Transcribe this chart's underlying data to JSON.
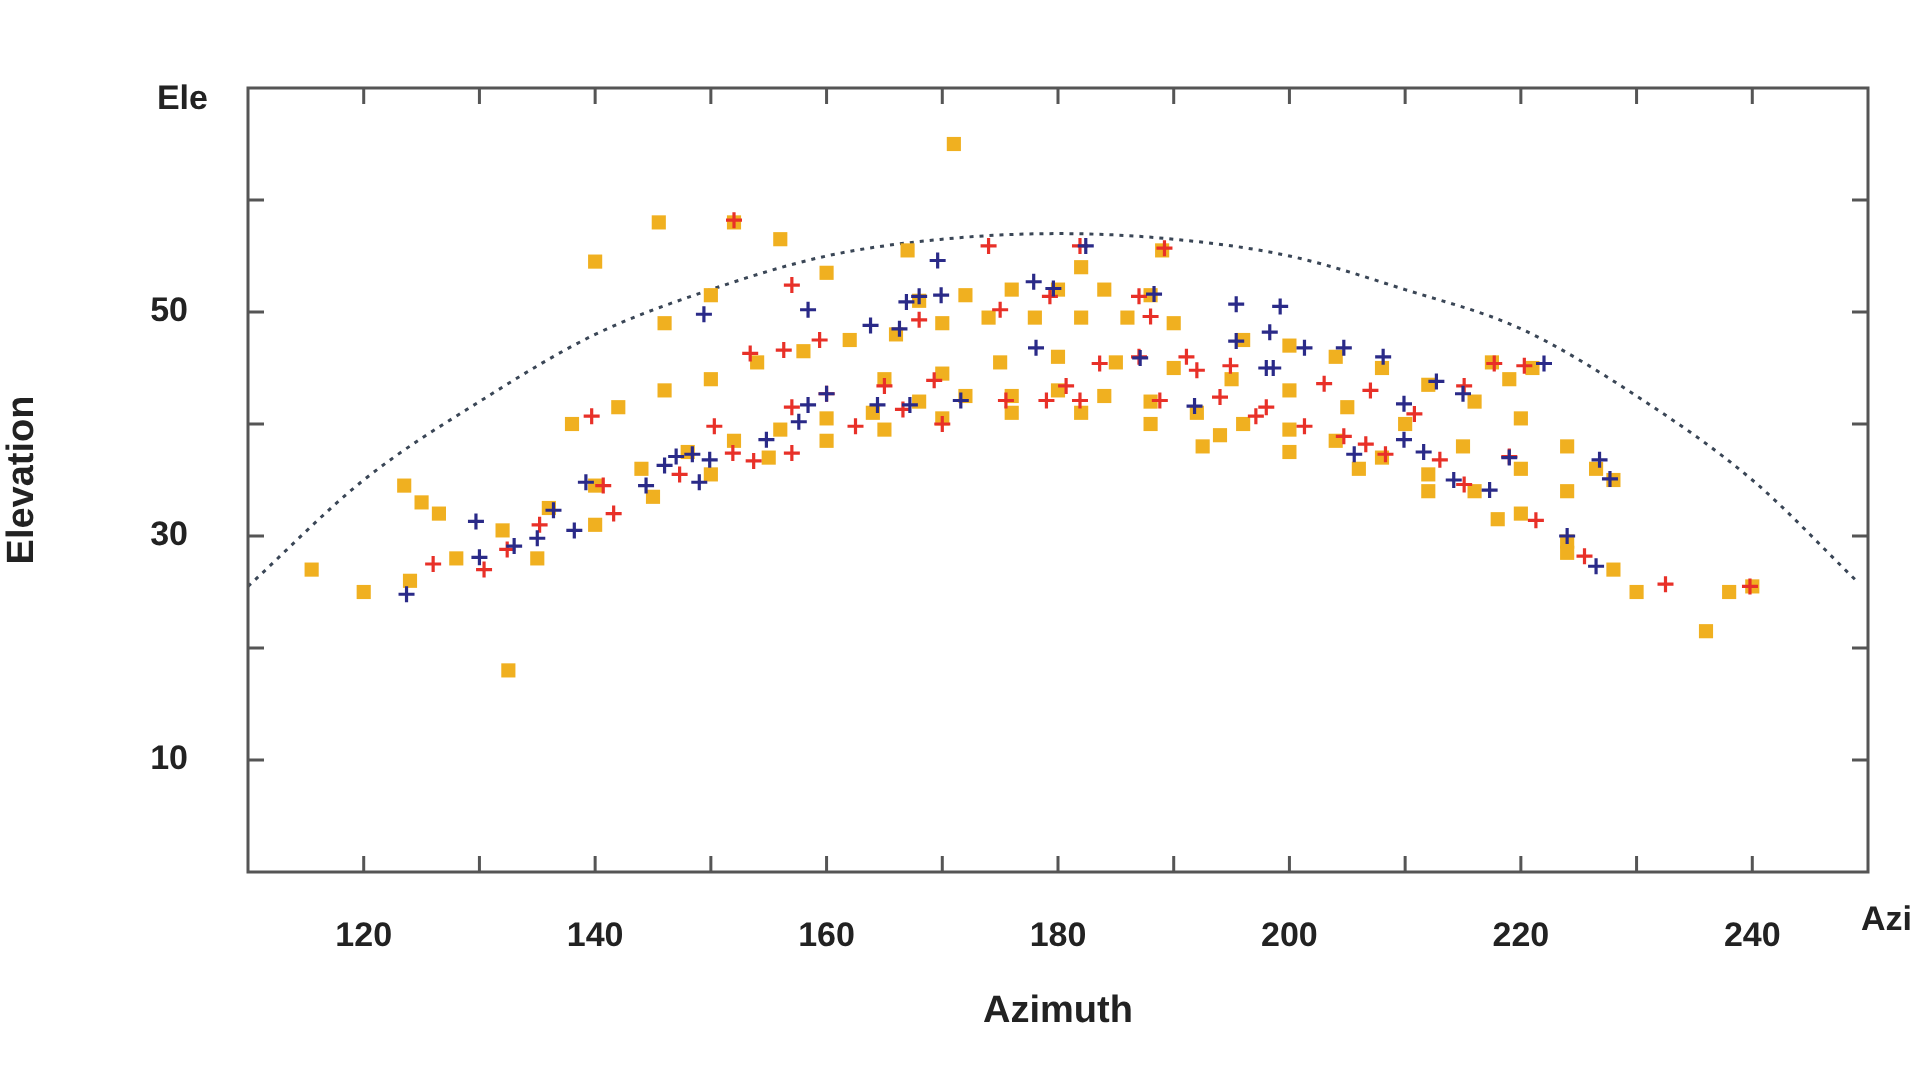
{
  "chart_data": {
    "type": "scatter",
    "xlabel": "Azimuth",
    "ylabel": "Elevation",
    "annotations": [
      "Ele",
      "Azi"
    ],
    "xlim": [
      110,
      250
    ],
    "xticks": [
      120,
      {
        "value": 130,
        "label": null
      },
      140,
      {
        "value": 150,
        "label": null
      },
      160,
      {
        "value": 170,
        "label": null
      },
      180,
      {
        "value": 190,
        "label": null
      },
      200,
      {
        "value": 210,
        "label": null
      },
      220,
      {
        "value": 230,
        "label": null
      },
      240
    ],
    "ylim": [
      0,
      70
    ],
    "yticks": [
      10,
      {
        "value": 20,
        "label": null
      },
      30,
      {
        "value": 40,
        "label": null
      },
      50,
      {
        "value": 60,
        "label": null
      }
    ],
    "grid": false,
    "legend": false,
    "series": [
      {
        "type": "scatter",
        "color": "#f0b020",
        "marker": "square",
        "x": [
          124,
          128,
          132,
          136,
          140,
          144,
          148,
          152,
          156,
          160,
          164,
          168,
          172,
          176,
          180,
          184,
          188,
          192,
          196,
          200,
          204,
          208,
          212,
          216,
          220,
          224,
          228,
          135,
          140,
          145,
          150,
          155,
          160,
          165,
          170,
          176,
          182,
          188,
          194,
          200,
          206,
          212,
          218,
          224,
          230,
          236,
          165,
          170,
          175,
          180,
          185,
          190,
          195,
          200,
          205,
          210,
          215,
          220,
          224,
          138,
          142,
          146,
          150,
          154,
          158,
          162,
          166,
          170,
          174,
          178,
          182,
          186,
          190,
          196,
          200,
          204,
          208,
          212,
          216,
          220,
          224,
          168,
          172,
          176,
          180,
          184,
          188,
          115.5,
          120,
          132.5,
          171,
          140,
          145.5,
          152,
          156,
          123.5,
          125,
          126.5,
          146,
          150,
          160,
          167,
          182,
          189,
          192.5,
          217.5,
          219,
          221,
          226.5,
          228,
          238,
          240
        ],
        "values": [
          26,
          28,
          30.5,
          32.5,
          34.5,
          36,
          37.5,
          38.5,
          39.5,
          40.5,
          41,
          42,
          42.5,
          42.5,
          43,
          42.5,
          42,
          41,
          40,
          39.5,
          38.5,
          37,
          35.5,
          34,
          32,
          29.5,
          27,
          28,
          31,
          33.5,
          35.5,
          37,
          38.5,
          39.5,
          40.5,
          41,
          41,
          40,
          39,
          37.5,
          36,
          34,
          31.5,
          28.5,
          25,
          21.5,
          44,
          44.5,
          45.5,
          46,
          45.5,
          45,
          44,
          43,
          41.5,
          40,
          38,
          36,
          34,
          40,
          41.5,
          43,
          44,
          45.5,
          46.5,
          47.5,
          48,
          49,
          49.5,
          49.5,
          49.5,
          49.5,
          49,
          47.5,
          47,
          46,
          45,
          43.5,
          42,
          40.5,
          38,
          51,
          51.5,
          52,
          52,
          52,
          51.5,
          27,
          25,
          18,
          65,
          54.5,
          58,
          58,
          56.5,
          34.5,
          33,
          32,
          49,
          51.5,
          53.5,
          55.5,
          54,
          55.5,
          38,
          45.5,
          44,
          45,
          36,
          35,
          25,
          25.5
        ]
      },
      {
        "type": "scatter",
        "color": "#e83028",
        "marker": "cross",
        "x": [
          126,
          130.4,
          132.4,
          135.2,
          139.7,
          140.7,
          141.6,
          147.3,
          150.3,
          151.9,
          153.4,
          153.7,
          156.3,
          157,
          157,
          159.4,
          160,
          162.5,
          165,
          166.6,
          168,
          169.3,
          170,
          174,
          175,
          175.5,
          179,
          152,
          157,
          179.3,
          181.9,
          189.2,
          187,
          188,
          183.6,
          187,
          180.7,
          181.9,
          188.8,
          191.1,
          192,
          194.9,
          194,
          197.1,
          198,
          201.3,
          203,
          204.7,
          207,
          206.6,
          208.3,
          210.8,
          213,
          215.1,
          215.1,
          217.7,
          220.3,
          219,
          221.3,
          225.5,
          232.5,
          239.8
        ],
        "values": [
          27.5,
          27,
          28.8,
          31,
          40.7,
          34.5,
          32,
          35.5,
          39.8,
          37.4,
          46.3,
          36.7,
          46.6,
          37.4,
          41.5,
          47.5,
          42.7,
          39.8,
          43.4,
          41.3,
          49.3,
          43.9,
          40,
          55.9,
          50.2,
          42.1,
          42.1,
          58.2,
          52.4,
          51.4,
          55.9,
          55.7,
          51.4,
          49.6,
          45.4,
          46,
          43.4,
          42.1,
          42.1,
          46,
          44.8,
          45.2,
          42.4,
          40.7,
          41.5,
          39.8,
          43.6,
          38.9,
          43,
          38.2,
          37.3,
          40.9,
          36.8,
          43.4,
          34.6,
          45.4,
          45.2,
          37.1,
          31.4,
          28.2,
          25.7,
          25.5
        ]
      },
      {
        "type": "scatter",
        "color": "#2a2a88",
        "marker": "cross",
        "x": [
          123.7,
          129.7,
          130,
          133,
          135,
          136.4,
          138.2,
          139.2,
          144.4,
          146,
          147,
          148.4,
          149,
          149.9,
          149.4,
          154.8,
          157.6,
          158.4,
          158.4,
          160,
          163.8,
          164.4,
          166.3,
          166.9,
          168,
          167.2,
          169.9,
          169.6,
          171.6,
          178.1,
          177.9,
          179.6,
          182.4,
          188.3,
          187.1,
          191.8,
          195.4,
          195.4,
          199.2,
          198.3,
          198,
          198.6,
          201.3,
          204.7,
          208.1,
          205.6,
          209.9,
          209.9,
          211.6,
          212.7,
          215,
          214.2,
          217.3,
          219,
          222,
          224,
          226.5,
          226.8,
          227.7
        ],
        "values": [
          24.8,
          31.3,
          28.1,
          29.1,
          29.8,
          32.3,
          30.5,
          34.8,
          34.5,
          36.3,
          37.1,
          37.3,
          34.8,
          36.8,
          49.8,
          38.6,
          40.2,
          50.2,
          41.7,
          42.7,
          48.8,
          41.7,
          48.5,
          50.9,
          51.4,
          41.7,
          51.5,
          54.6,
          42.1,
          46.8,
          52.7,
          52.1,
          55.9,
          51.6,
          45.9,
          41.6,
          50.7,
          47.4,
          50.5,
          48.2,
          45,
          45,
          46.8,
          46.8,
          46,
          37.3,
          41.8,
          38.6,
          37.5,
          43.8,
          42.7,
          35,
          34.1,
          37,
          45.4,
          30,
          27.3,
          36.8,
          35.1
        ]
      },
      {
        "type": "line",
        "color": "#3a4656",
        "marker": "none",
        "line_style": "dotted",
        "x": [
          110,
          120,
          130,
          140,
          150,
          160,
          170,
          180,
          190,
          200,
          210,
          220,
          230,
          240,
          249
        ],
        "values": [
          25.5,
          35,
          42,
          48,
          52,
          55,
          56.5,
          57,
          56.5,
          55,
          52,
          48.5,
          42.5,
          35,
          26
        ]
      }
    ]
  }
}
